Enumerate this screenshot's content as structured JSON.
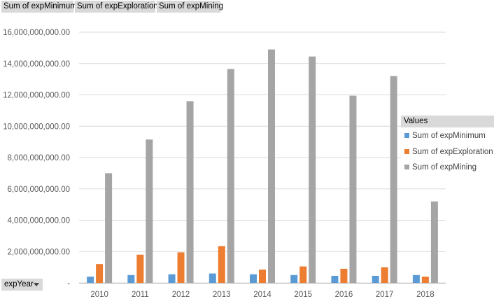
{
  "field_buttons": [
    "Sum of expMinimum",
    "Sum of expExploration",
    "Sum of expMining"
  ],
  "axis_field_button": "expYear",
  "legend_title": "Values",
  "colors": {
    "minimum": "#5b9bd5",
    "exploration": "#ed7d31",
    "mining": "#a5a5a5"
  },
  "chart_data": {
    "type": "bar",
    "categories": [
      "2010",
      "2011",
      "2012",
      "2013",
      "2014",
      "2015",
      "2016",
      "2017",
      "2018"
    ],
    "series": [
      {
        "name": "Sum of expMinimum",
        "values": [
          400000000,
          500000000,
          550000000,
          600000000,
          550000000,
          500000000,
          450000000,
          450000000,
          500000000
        ]
      },
      {
        "name": "Sum of expExploration",
        "values": [
          1200000000,
          1800000000,
          1950000000,
          2350000000,
          850000000,
          1050000000,
          900000000,
          1000000000,
          400000000
        ]
      },
      {
        "name": "Sum of expMining",
        "values": [
          7000000000,
          9150000000,
          11600000000,
          13650000000,
          14900000000,
          14450000000,
          11950000000,
          13200000000,
          5200000000
        ]
      }
    ],
    "ylim": [
      0,
      16000000000
    ],
    "yticks": [
      "-",
      "2,000,000,000.00",
      "4,000,000,000.00",
      "6,000,000,000.00",
      "8,000,000,000.00",
      "10,000,000,000.00",
      "12,000,000,000.00",
      "14,000,000,000.00",
      "16,000,000,000.00"
    ],
    "grid": true,
    "legend_position": "right"
  }
}
